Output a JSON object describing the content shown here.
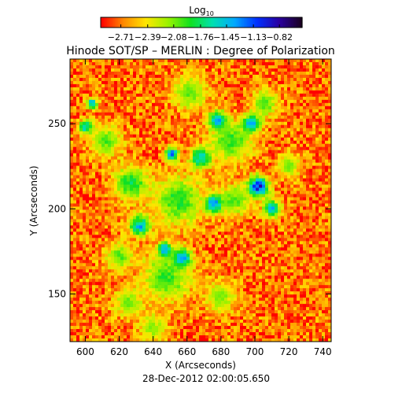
{
  "chart_data": {
    "type": "heatmap",
    "title": "Hinode SOT/SP – MERLIN : Degree of Polarization",
    "xlabel": "X (Arcseconds)",
    "ylabel": "Y (Arcseconds)",
    "xlim": [
      591,
      745
    ],
    "ylim": [
      122,
      288
    ],
    "x_ticks": [
      600,
      620,
      640,
      660,
      680,
      700,
      720,
      740
    ],
    "y_ticks": [
      150,
      200,
      250
    ],
    "colorbar": {
      "title_base": "Log",
      "title_sub": "10",
      "range": [
        -2.95,
        -0.55
      ],
      "tick_labels": [
        "−2.71",
        "−2.39",
        "−2.08",
        "−1.76",
        "−1.45",
        "−1.13",
        "−0.82"
      ],
      "tick_values": [
        -2.71,
        -2.39,
        -2.08,
        -1.76,
        -1.45,
        -1.13,
        -0.82
      ],
      "colormap": [
        "#ff0000",
        "#ff8a00",
        "#ffe600",
        "#9af200",
        "#10e020",
        "#00e0b0",
        "#00a8ff",
        "#0030ff",
        "#2a00a0",
        "#1a0020"
      ]
    },
    "blobs": [
      {
        "x": 702,
        "y": 213,
        "r": 6,
        "v": -0.7
      },
      {
        "x": 676,
        "y": 203,
        "r": 5,
        "v": -0.8
      },
      {
        "x": 657,
        "y": 171,
        "r": 5,
        "v": -0.85
      },
      {
        "x": 647,
        "y": 176,
        "r": 4,
        "v": -0.9
      },
      {
        "x": 678,
        "y": 252,
        "r": 5,
        "v": -1.0
      },
      {
        "x": 698,
        "y": 250,
        "r": 5,
        "v": -1.05
      },
      {
        "x": 651,
        "y": 232,
        "r": 4,
        "v": -1.0
      },
      {
        "x": 632,
        "y": 190,
        "r": 6,
        "v": -1.2
      },
      {
        "x": 668,
        "y": 230,
        "r": 6,
        "v": -1.3
      },
      {
        "x": 710,
        "y": 200,
        "r": 5,
        "v": -1.25
      },
      {
        "x": 600,
        "y": 248,
        "r": 4,
        "v": -1.3
      },
      {
        "x": 604,
        "y": 262,
        "r": 3,
        "v": -1.15
      },
      {
        "x": 627,
        "y": 215,
        "r": 10,
        "v": -1.7
      },
      {
        "x": 655,
        "y": 205,
        "r": 14,
        "v": -1.75
      },
      {
        "x": 686,
        "y": 240,
        "r": 12,
        "v": -1.8
      },
      {
        "x": 648,
        "y": 160,
        "r": 14,
        "v": -1.8
      },
      {
        "x": 688,
        "y": 205,
        "r": 9,
        "v": -1.85
      },
      {
        "x": 612,
        "y": 240,
        "r": 9,
        "v": -1.9
      },
      {
        "x": 662,
        "y": 268,
        "r": 10,
        "v": -1.95
      },
      {
        "x": 706,
        "y": 262,
        "r": 8,
        "v": -1.9
      },
      {
        "x": 625,
        "y": 145,
        "r": 8,
        "v": -1.95
      },
      {
        "x": 680,
        "y": 148,
        "r": 9,
        "v": -2.0
      },
      {
        "x": 620,
        "y": 172,
        "r": 8,
        "v": -1.9
      },
      {
        "x": 720,
        "y": 225,
        "r": 7,
        "v": -2.0
      },
      {
        "x": 640,
        "y": 130,
        "r": 8,
        "v": -2.05
      }
    ]
  },
  "footer": {
    "timestamp": "28-Dec-2012 02:00:05.650"
  }
}
